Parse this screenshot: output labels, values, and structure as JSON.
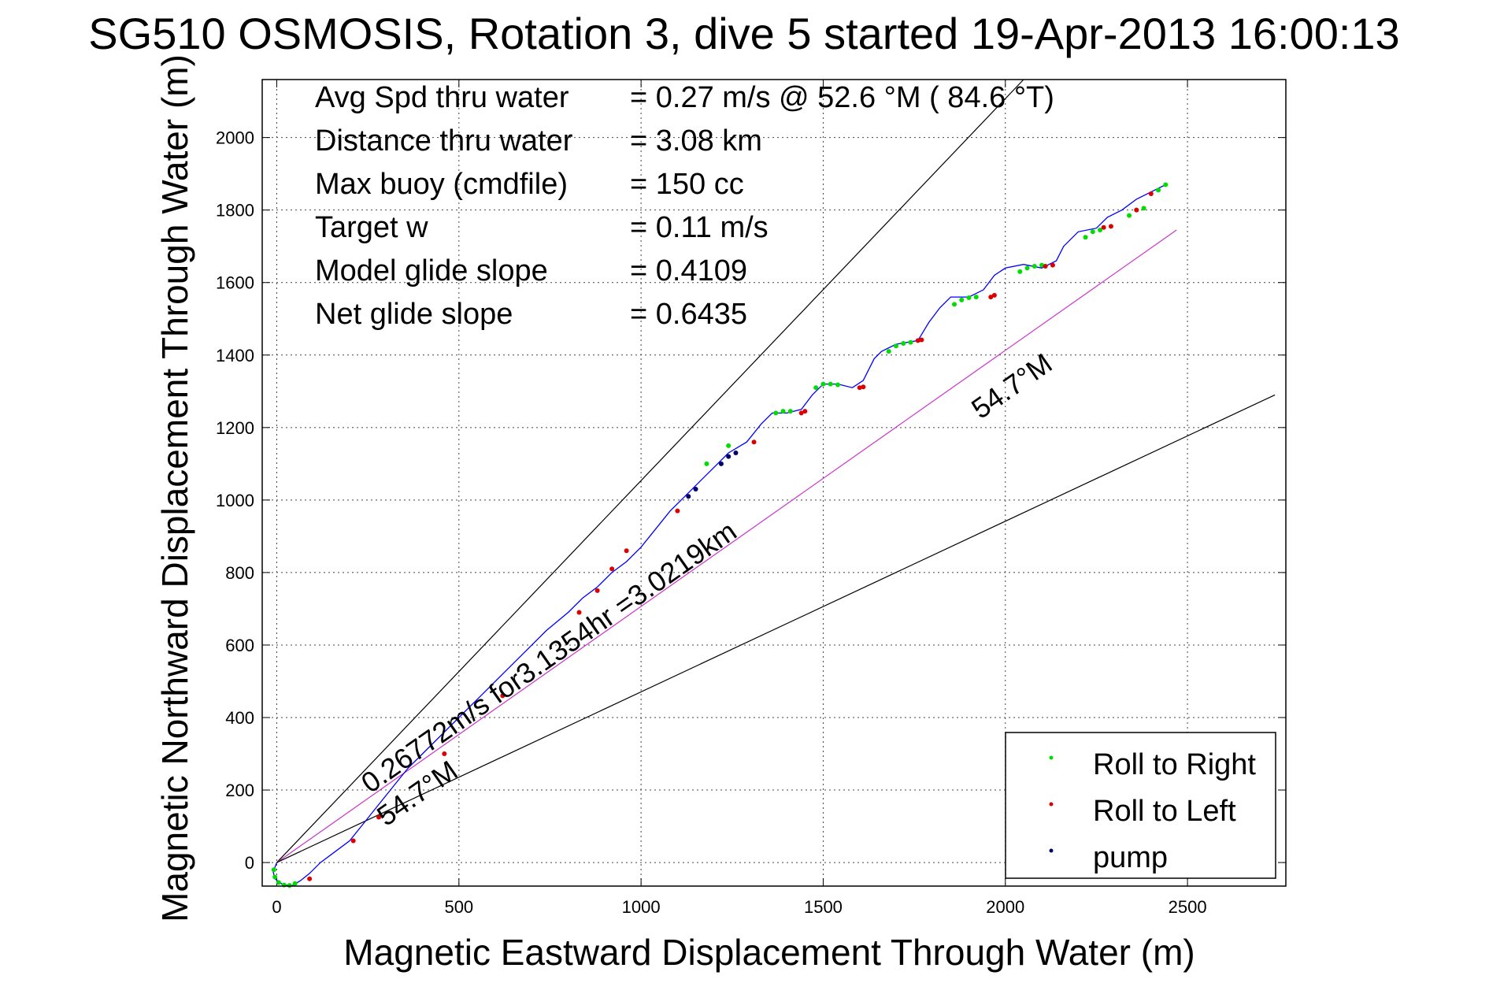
{
  "chart_data": {
    "type": "scatter",
    "title": "SG510 OSMOSIS, Rotation 3, dive 5 started 19-Apr-2013 16:00:13",
    "xlabel": "Magnetic Eastward Displacement Through Water (m)",
    "ylabel": "Magnetic Northward Displacement Through Water (m)",
    "xlim": [
      -40,
      2770
    ],
    "ylim": [
      -65,
      2160
    ],
    "xticks": [
      0,
      500,
      1000,
      1500,
      2000,
      2500
    ],
    "yticks": [
      0,
      200,
      400,
      600,
      800,
      1000,
      1200,
      1400,
      1600,
      1800,
      2000
    ],
    "xtick_labels": [
      "0",
      "500",
      "1000",
      "1500",
      "2000",
      "2500"
    ],
    "ytick_labels": [
      "0",
      "200",
      "400",
      "600",
      "800",
      "1000",
      "1200",
      "1400",
      "1600",
      "1800",
      "2000"
    ],
    "grid": true,
    "legend_position": "bottom-right",
    "stats": [
      {
        "label": "Avg Spd thru water",
        "value": "=  0.27 m/s @  52.6 °M ( 84.6 °T)"
      },
      {
        "label": "Distance thru water",
        "value": "=  3.08 km"
      },
      {
        "label": "Max buoy (cmdfile)",
        "value": "= 150 cc"
      },
      {
        "label": "Target w",
        "value": "= 0.11 m/s"
      },
      {
        "label": "Model glide slope",
        "value": "= 0.4109"
      },
      {
        "label": "Net glide slope",
        "value": "= 0.6435"
      }
    ],
    "annotations": {
      "net_vector": "0.26772m/s for3.1354hr =3.0219km",
      "heading_upper": "54.7°M",
      "heading_lower": "54.7°M"
    },
    "reference_lines": [
      {
        "name": "upper bound",
        "x": [
          0,
          2050
        ],
        "y": [
          0,
          2160
        ],
        "color": "#000000"
      },
      {
        "name": "heading line",
        "x": [
          0,
          2470
        ],
        "y": [
          0,
          1745
        ],
        "color": "#cc33cc"
      },
      {
        "name": "lower bound",
        "x": [
          0,
          2740
        ],
        "y": [
          0,
          1290
        ],
        "color": "#000000"
      }
    ],
    "track": {
      "name": "track",
      "color": "#0000ff",
      "x": [
        0,
        -10,
        -5,
        15,
        40,
        65,
        90,
        120,
        160,
        200,
        240,
        280,
        320,
        360,
        400,
        450,
        500,
        560,
        620,
        680,
        740,
        800,
        840,
        880,
        920,
        960,
        1000,
        1040,
        1080,
        1120,
        1160,
        1200,
        1240,
        1290,
        1330,
        1360,
        1400,
        1440,
        1470,
        1500,
        1540,
        1580,
        1610,
        1640,
        1660,
        1700,
        1760,
        1790,
        1820,
        1850,
        1900,
        1940,
        1970,
        2000,
        2050,
        2100,
        2140,
        2160,
        2200,
        2250,
        2280,
        2320,
        2360,
        2400,
        2440
      ],
      "y": [
        0,
        -25,
        -45,
        -60,
        -65,
        -50,
        -30,
        0,
        30,
        60,
        110,
        160,
        210,
        260,
        300,
        350,
        400,
        460,
        520,
        580,
        640,
        690,
        730,
        760,
        800,
        830,
        870,
        920,
        970,
        1010,
        1050,
        1090,
        1130,
        1160,
        1210,
        1240,
        1240,
        1250,
        1290,
        1320,
        1320,
        1310,
        1330,
        1390,
        1410,
        1430,
        1440,
        1490,
        1530,
        1560,
        1560,
        1580,
        1620,
        1640,
        1650,
        1640,
        1660,
        1700,
        1740,
        1750,
        1780,
        1800,
        1830,
        1850,
        1870
      ]
    },
    "series": [
      {
        "name": "Roll to Right",
        "color": "#00dd00",
        "x": [
          -8,
          -5,
          5,
          20,
          35,
          50,
          1180,
          1240,
          1370,
          1390,
          1410,
          1480,
          1500,
          1520,
          1540,
          1680,
          1700,
          1720,
          1740,
          1860,
          1880,
          1900,
          1920,
          2040,
          2060,
          2080,
          2100,
          2220,
          2240,
          2260,
          2340,
          2360,
          2380,
          2420,
          2440
        ],
        "y": [
          -20,
          -40,
          -55,
          -62,
          -63,
          -58,
          1100,
          1150,
          1240,
          1245,
          1245,
          1310,
          1320,
          1320,
          1318,
          1410,
          1425,
          1432,
          1435,
          1540,
          1552,
          1558,
          1560,
          1630,
          1640,
          1645,
          1648,
          1725,
          1740,
          1745,
          1785,
          1800,
          1805,
          1855,
          1870
        ]
      },
      {
        "name": "Roll to Left",
        "color": "#dd0000",
        "x": [
          90,
          210,
          280,
          460,
          620,
          830,
          880,
          920,
          960,
          1100,
          1310,
          1440,
          1450,
          1600,
          1610,
          1760,
          1770,
          1960,
          1970,
          2110,
          2130,
          2270,
          2290,
          2360,
          2400
        ],
        "y": [
          -45,
          60,
          125,
          300,
          460,
          690,
          750,
          810,
          860,
          970,
          1160,
          1240,
          1245,
          1310,
          1312,
          1440,
          1442,
          1560,
          1565,
          1645,
          1648,
          1752,
          1755,
          1800,
          1845
        ]
      },
      {
        "name": "pump",
        "color": "#000066",
        "x": [
          1130,
          1150,
          1220,
          1240,
          1260
        ],
        "y": [
          1010,
          1030,
          1100,
          1120,
          1130
        ]
      }
    ]
  }
}
